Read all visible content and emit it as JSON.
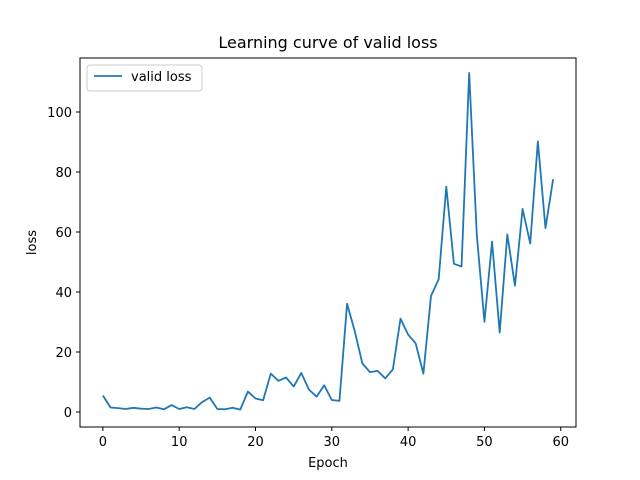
{
  "chart_data": {
    "type": "line",
    "title": "Learning curve of valid loss",
    "xlabel": "Epoch",
    "ylabel": "loss",
    "xlim": [
      -3,
      62
    ],
    "ylim": [
      -5,
      118
    ],
    "xticks": [
      0,
      10,
      20,
      30,
      40,
      50,
      60
    ],
    "yticks": [
      0,
      20,
      40,
      60,
      80,
      100
    ],
    "grid": false,
    "legend_position": "top-left",
    "series": [
      {
        "name": "valid loss",
        "color": "#1f77b4",
        "x": [
          0,
          1,
          2,
          3,
          4,
          5,
          6,
          7,
          8,
          9,
          10,
          11,
          12,
          13,
          14,
          15,
          16,
          17,
          18,
          19,
          20,
          21,
          22,
          23,
          24,
          25,
          26,
          27,
          28,
          29,
          30,
          31,
          32,
          33,
          34,
          35,
          36,
          37,
          38,
          39,
          40,
          41,
          42,
          43,
          44,
          45,
          46,
          47,
          48,
          49,
          50,
          51,
          52,
          53,
          54,
          55,
          56,
          57,
          58,
          59
        ],
        "values": [
          5.5,
          1.5,
          1.3,
          1.0,
          1.4,
          1.1,
          1.0,
          1.5,
          0.9,
          2.3,
          1.0,
          1.6,
          1.0,
          3.3,
          4.8,
          1.0,
          0.9,
          1.4,
          0.8,
          6.8,
          4.5,
          3.9,
          12.8,
          10.4,
          11.5,
          8.5,
          13.0,
          7.5,
          5.1,
          8.9,
          4.0,
          3.7,
          36.1,
          27.0,
          16.2,
          13.3,
          13.7,
          11.2,
          14.2,
          31.1,
          25.8,
          22.8,
          12.8,
          38.7,
          44.2,
          75.1,
          49.4,
          48.5,
          113.0,
          59.0,
          30.1,
          56.8,
          26.5,
          59.2,
          42.1,
          67.7,
          56.2,
          90.2,
          61.3,
          77.6
        ]
      }
    ]
  }
}
